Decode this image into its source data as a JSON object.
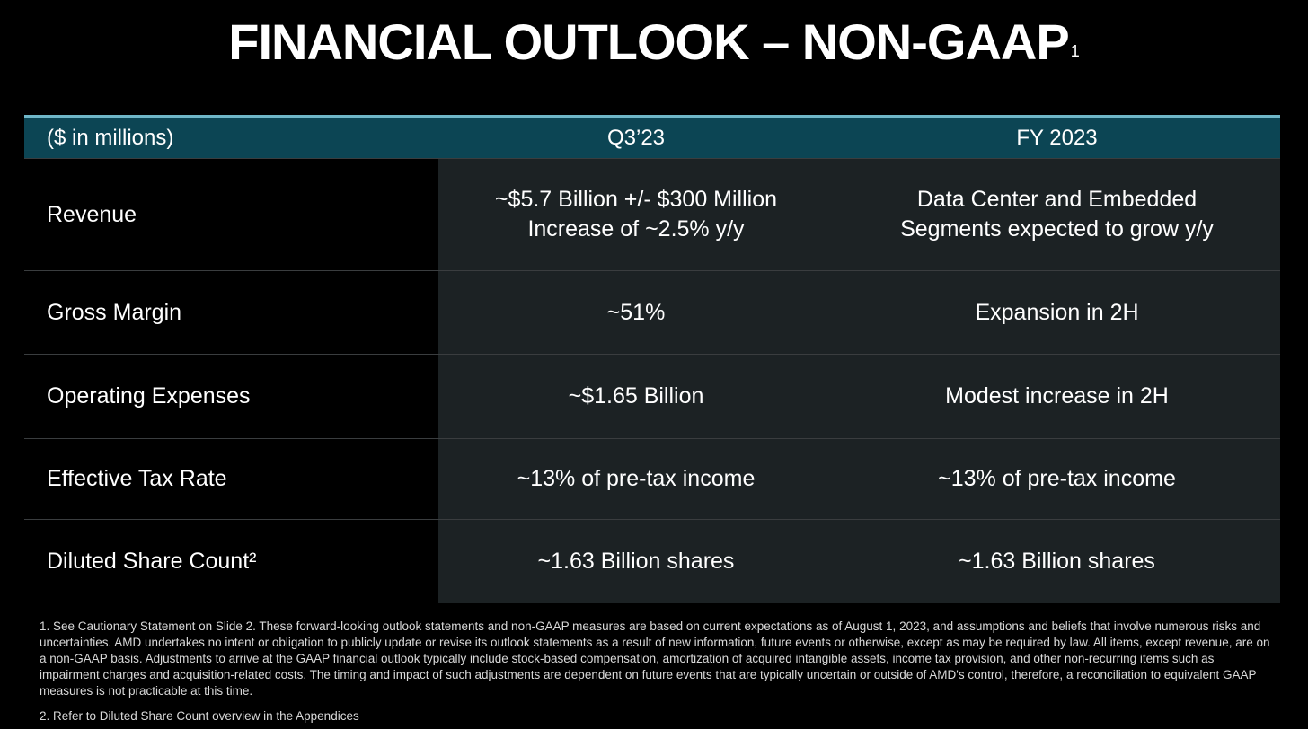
{
  "title": {
    "text": "FINANCIAL OUTLOOK – NON-GAAP",
    "superscript": "1"
  },
  "table": {
    "header": {
      "label": "($ in millions)",
      "col1": "Q3’23",
      "col2": "FY 2023"
    },
    "rows": {
      "revenue": {
        "label": "Revenue",
        "q3_line1": "~$5.7 Billion +/- $300 Million",
        "q3_line2": "Increase of ~2.5% y/y",
        "fy_line1": "Data Center and Embedded",
        "fy_line2": "Segments expected to grow y/y"
      },
      "gross_margin": {
        "label": "Gross Margin",
        "q3": "~51%",
        "fy": "Expansion in 2H"
      },
      "operating_expenses": {
        "label": "Operating Expenses",
        "q3": "~$1.65 Billion",
        "fy": "Modest increase in 2H"
      },
      "effective_tax_rate": {
        "label": "Effective Tax Rate",
        "q3": "~13% of pre-tax income",
        "fy": "~13% of pre-tax income"
      },
      "diluted_share_count": {
        "label": "Diluted Share Count²",
        "q3": "~1.63 Billion shares",
        "fy": "~1.63 Billion shares"
      }
    }
  },
  "footnotes": {
    "note1": "1.  See Cautionary Statement on Slide 2. These forward-looking outlook statements and non-GAAP measures are based on current expectations as of August 1, 2023, and assumptions and beliefs that involve numerous risks and uncertainties. AMD undertakes no intent or obligation to publicly update or revise its outlook statements as a result of new information, future events or otherwise, except as may be required by law. All items, except revenue, are on a non-GAAP basis. Adjustments to arrive at the GAAP financial outlook typically include stock-based compensation, amortization of acquired intangible assets, income tax provision, and other non-recurring items such as impairment charges and acquisition-related costs. The timing and impact of such adjustments are dependent on future events that are typically uncertain or outside of AMD's control, therefore, a reconciliation to equivalent GAAP measures is not practicable at this time.",
    "note2": "2.  Refer to Diluted Share Count overview in the Appendices"
  }
}
